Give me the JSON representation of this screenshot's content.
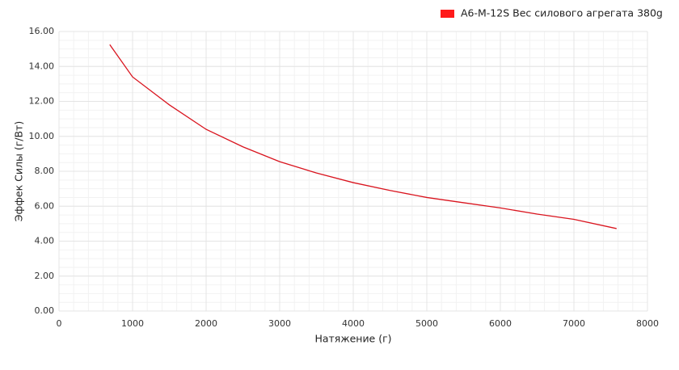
{
  "chart_data": {
    "type": "line",
    "x_label": "Натяжение (г)",
    "y_label": "Эффек Силы (г/Вт)",
    "x": [
      690,
      1000,
      1500,
      2000,
      2500,
      3000,
      3500,
      4000,
      4500,
      5000,
      5500,
      6000,
      6500,
      7000,
      7580
    ],
    "series": [
      {
        "name": "A6-M-12S Вес силового агрегата 380g",
        "color": "#d9141e",
        "values": [
          15.25,
          13.4,
          11.8,
          10.4,
          9.4,
          8.55,
          7.9,
          7.35,
          6.9,
          6.5,
          6.2,
          5.9,
          5.55,
          5.25,
          4.72
        ]
      }
    ],
    "xlim": [
      0,
      8000
    ],
    "xticks": [
      0,
      1000,
      2000,
      3000,
      4000,
      5000,
      6000,
      7000,
      8000
    ],
    "ylim": [
      0,
      16
    ],
    "yticks": [
      {
        "value": 0,
        "label": "0.00"
      },
      {
        "value": 2,
        "label": "2.00"
      },
      {
        "value": 4,
        "label": "4.00"
      },
      {
        "value": 6,
        "label": "6.00"
      },
      {
        "value": 8,
        "label": "8.00"
      },
      {
        "value": 10,
        "label": "10.00"
      },
      {
        "value": 12,
        "label": "12.00"
      },
      {
        "value": 14,
        "label": "14.00"
      },
      {
        "value": 16,
        "label": "16.00"
      }
    ],
    "grid": true,
    "legend_position": "top-right",
    "legend_swatch_color": "#ff1a1a"
  }
}
